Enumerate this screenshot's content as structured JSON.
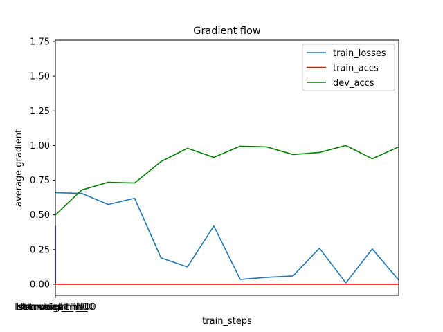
{
  "chart_data": {
    "type": "line",
    "title": "Gradient flow",
    "xlabel": "train_steps",
    "ylabel": "average gradient",
    "ylim": [
      -0.08,
      1.76
    ],
    "yticks": [
      0.0,
      0.25,
      0.5,
      0.75,
      1.0,
      1.25,
      1.5,
      1.75
    ],
    "ytick_labels": [
      "0.00",
      "0.25",
      "0.50",
      "0.75",
      "1.00",
      "1.25",
      "1.50",
      "1.75"
    ],
    "x": [
      0,
      1,
      2,
      3,
      4,
      5,
      6,
      7,
      8,
      9,
      10,
      11,
      12,
      13
    ],
    "xlim": [
      0,
      13
    ],
    "x_category_labels": [
      "lstm.weight_ih_l0",
      "lstm.weight_hh_l0",
      "lstm.bias_ih_l0",
      "lstm.bias_hh_l0"
    ],
    "legend_position": "top-right",
    "series": [
      {
        "name": "train_losses",
        "color": "#1f77b4",
        "values": [
          0.66,
          0.655,
          0.575,
          0.62,
          0.19,
          0.125,
          0.42,
          0.035,
          0.05,
          0.06,
          0.26,
          0.01,
          0.255,
          0.03
        ]
      },
      {
        "name": "train_accs",
        "color": "#ff0000",
        "values": [
          0,
          0,
          0,
          0,
          0,
          0,
          0,
          0,
          0,
          0,
          0,
          0,
          0,
          0
        ]
      },
      {
        "name": "dev_accs",
        "color": "#008000",
        "values": [
          0.5,
          0.68,
          0.735,
          0.73,
          0.885,
          0.98,
          0.915,
          0.995,
          0.99,
          0.935,
          0.95,
          1.0,
          0.905,
          0.99
        ]
      }
    ],
    "gradient_bars": {
      "color": "#00008b",
      "values": [
        0.42,
        0.0,
        0.0,
        0.0
      ]
    }
  }
}
